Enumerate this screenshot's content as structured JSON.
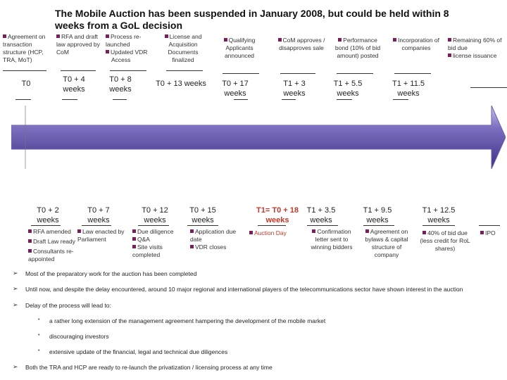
{
  "title": "The Mobile Auction has been suspended in January 2008, but could be held within 8 weeks from a GoL decision",
  "top_events": [
    "Agreement on transaction structure (HCP, TRA, MoT)",
    "RFA and draft law approved by CoM",
    "Process re-launched",
    "Updated VDR",
    "Access",
    "License and Acquisition Documents finalized",
    "Qualifying Applicants announced",
    "CoM approves / disapproves sale",
    "Performance bond (10% of bid amount) posted",
    "Incorporation of companies",
    "Remaining 60% of bid due",
    "license issuance"
  ],
  "top_times": [
    "T0",
    "T0 + 4 weeks",
    "T0 + 8 weeks",
    "T0 + 13 weeks",
    "T0 + 17 weeks",
    "T1 + 3 weeks",
    "T1 + 5.5 weeks",
    "T1 + 11.5 weeks"
  ],
  "bottom_times": [
    "T0 + 2 weeks",
    "T0 + 7 weeks",
    "T0 + 12 weeks",
    "T0 + 15 weeks",
    "T1= T0 + 18 weeks",
    "T1 + 3.5 weeks",
    "T1 + 9.5 weeks",
    "T1 + 12.5 weeks"
  ],
  "bottom_events": [
    "RFA amended",
    "Law enacted by Parliament",
    "Draft Law ready",
    "Consultants re-appointed",
    "Due diligence",
    "Q&A",
    "Site visits completed",
    "Application due date",
    "VDR closes",
    "Auction Day",
    "Confirmation letter sent to winning bidders",
    "Agreement on bylaws & capital structure of company",
    "40% of bid due (less credit for RoL shares)",
    "IPO"
  ],
  "notes": [
    "Most of the preparatory work for the auction has been completed",
    "Until now, and despite the delay encountered, around 10 major regional and international players of the telecommunications sector have shown interest in the auction",
    "Delay of the process will lead to:",
    "Both the TRA and HCP are ready to re-launch the privatization / licensing process at any time"
  ],
  "sub_notes": [
    "a rather long extension of the management agreement hampering the development of the mobile market",
    "discouraging investors",
    "extensive update of the financial, legal and technical due diligences"
  ],
  "colors": {
    "arrow_dark": "#4b3c8f",
    "arrow_light": "#a79ad6",
    "bullet": "#7a1f5c",
    "highlight": "#c0392b"
  }
}
